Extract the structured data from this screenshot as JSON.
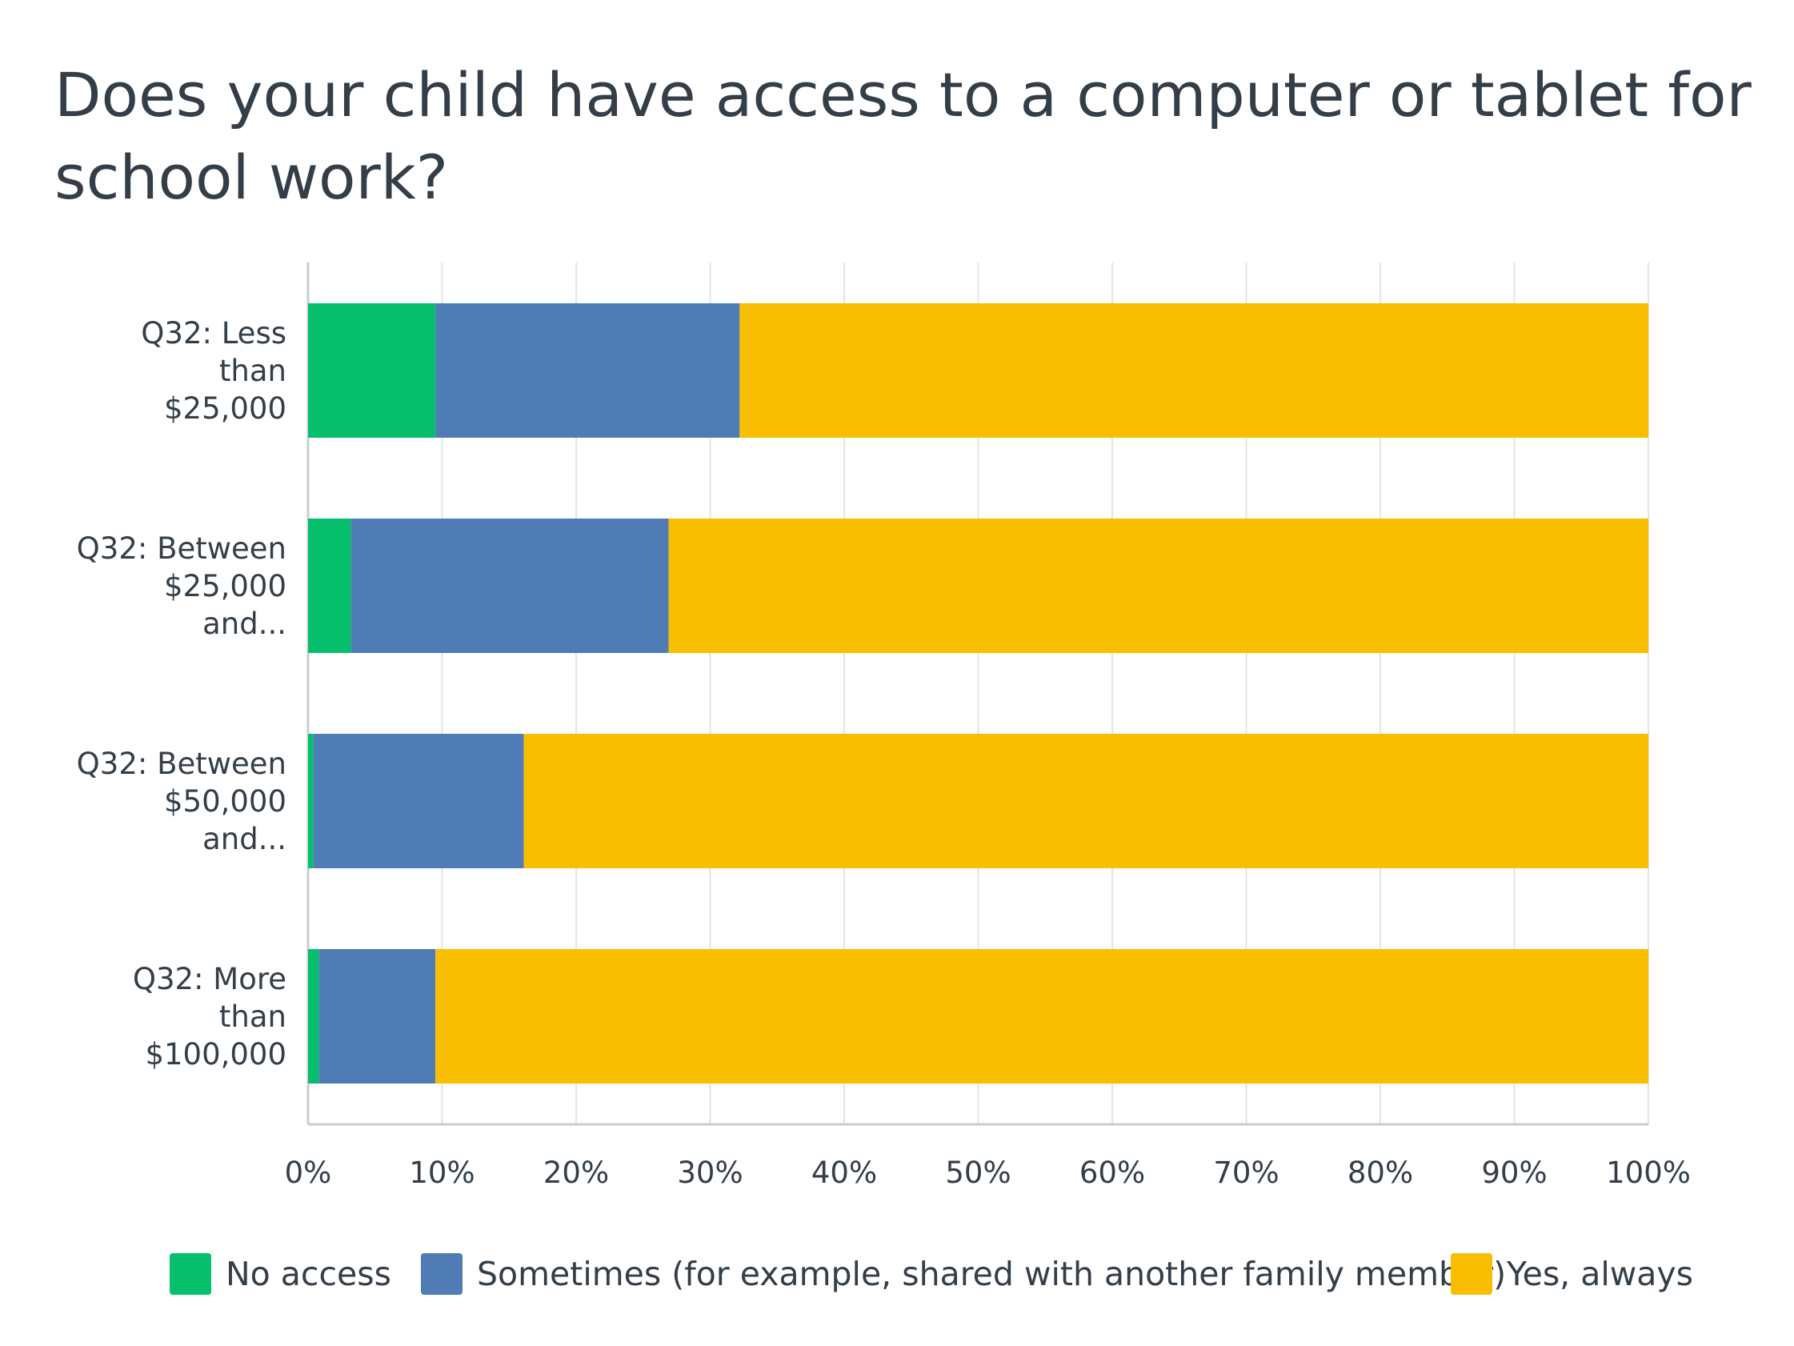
{
  "chart_data": {
    "type": "bar",
    "orientation": "horizontal",
    "stacked": true,
    "title": "Does your child have access to a computer or tablet for school work?",
    "title_lines": [
      "Does your child have access to a computer or tablet for",
      "school work?"
    ],
    "categories": [
      "Q32: Less than $25,000",
      "Q32: Between $25,000 and...",
      "Q32: Between $50,000 and...",
      "Q32: More than $100,000"
    ],
    "category_lines": [
      [
        "Q32: Less",
        "than",
        "$25,000"
      ],
      [
        "Q32: Between",
        "$25,000",
        "and..."
      ],
      [
        "Q32: Between",
        "$50,000",
        "and..."
      ],
      [
        "Q32: More",
        "than",
        "$100,000"
      ]
    ],
    "series": [
      {
        "name": "No access",
        "color": "#05bf6d",
        "values": [
          9.5,
          3.2,
          0.4,
          0.8
        ]
      },
      {
        "name": "Sometimes (for example, shared with another family member)",
        "color": "#507cb6",
        "values": [
          22.7,
          23.7,
          15.7,
          8.7
        ]
      },
      {
        "name": "Yes, always",
        "color": "#f9be00",
        "values": [
          67.8,
          73.1,
          83.9,
          90.5
        ]
      }
    ],
    "xlim": [
      0,
      100
    ],
    "xticks": [
      "0%",
      "10%",
      "20%",
      "30%",
      "40%",
      "50%",
      "60%",
      "70%",
      "80%",
      "90%",
      "100%"
    ],
    "grid": true,
    "legend_position": "bottom",
    "xlabel": "",
    "ylabel": ""
  }
}
